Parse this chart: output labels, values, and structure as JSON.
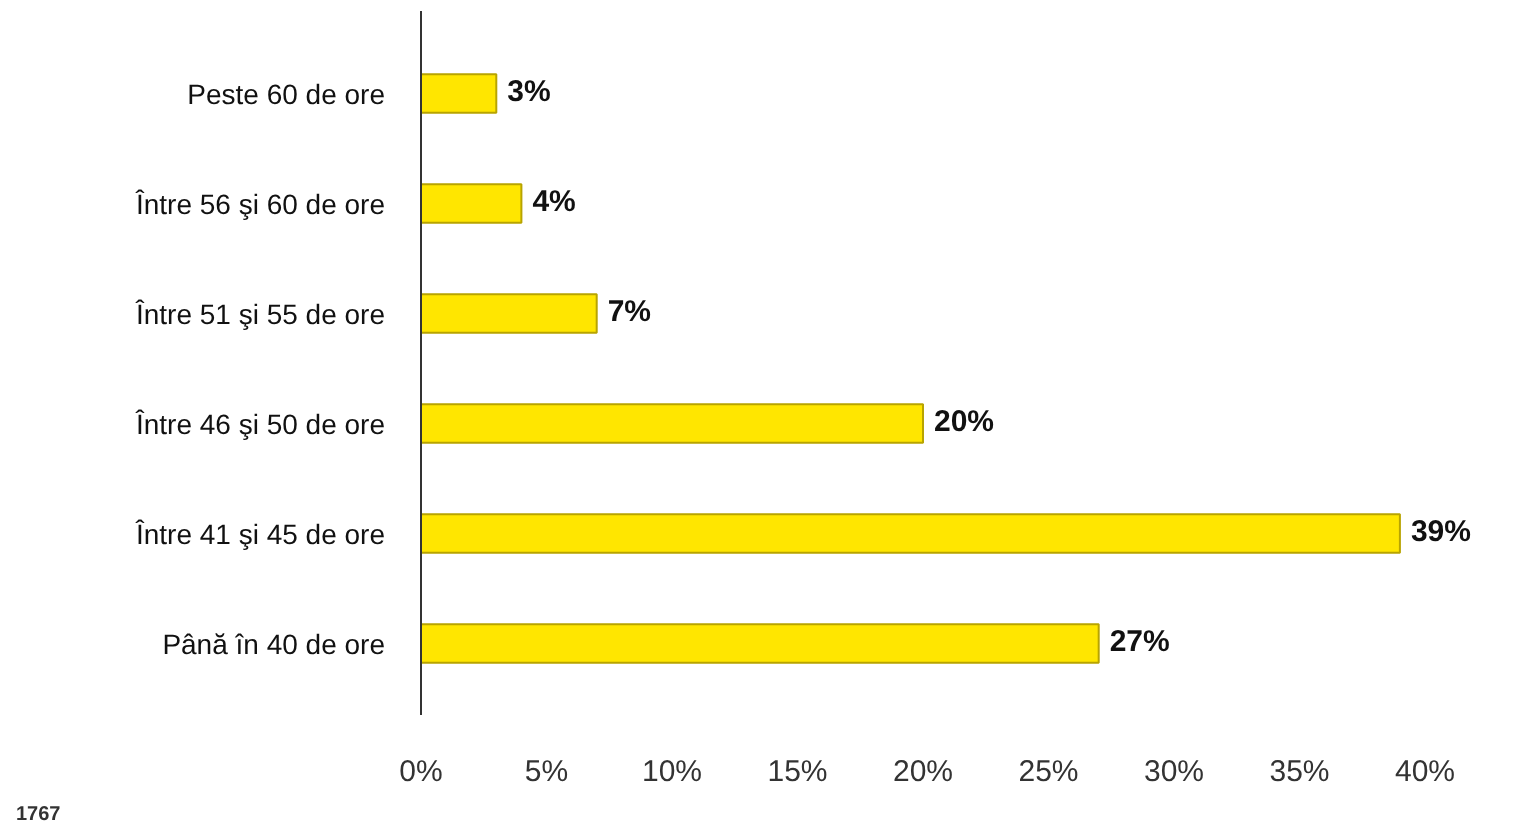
{
  "chart_data": {
    "type": "bar",
    "orientation": "horizontal",
    "categories": [
      "Peste 60 de ore",
      "Între 56 şi 60 de ore",
      "Între 51 şi 55 de ore",
      "Între 46 şi 50 de ore",
      "Între 41 şi 45 de ore",
      "Până în 40 de ore"
    ],
    "values": [
      3,
      4,
      7,
      20,
      39,
      27
    ],
    "value_labels": [
      "3%",
      "4%",
      "7%",
      "20%",
      "39%",
      "27%"
    ],
    "color": "#ffe600",
    "xlim": [
      0,
      40
    ],
    "xticks": [
      {
        "value": 0,
        "label": "0%"
      },
      {
        "value": 5,
        "label": "5%"
      },
      {
        "value": 10,
        "label": "10%"
      },
      {
        "value": 15,
        "label": "15%"
      },
      {
        "value": 20,
        "label": "20%"
      },
      {
        "value": 25,
        "label": "25%"
      },
      {
        "value": 30,
        "label": "30%"
      },
      {
        "value": 35,
        "label": "35%"
      },
      {
        "value": 40,
        "label": "40%"
      }
    ],
    "grid": false,
    "annotations": [
      "1767"
    ]
  }
}
